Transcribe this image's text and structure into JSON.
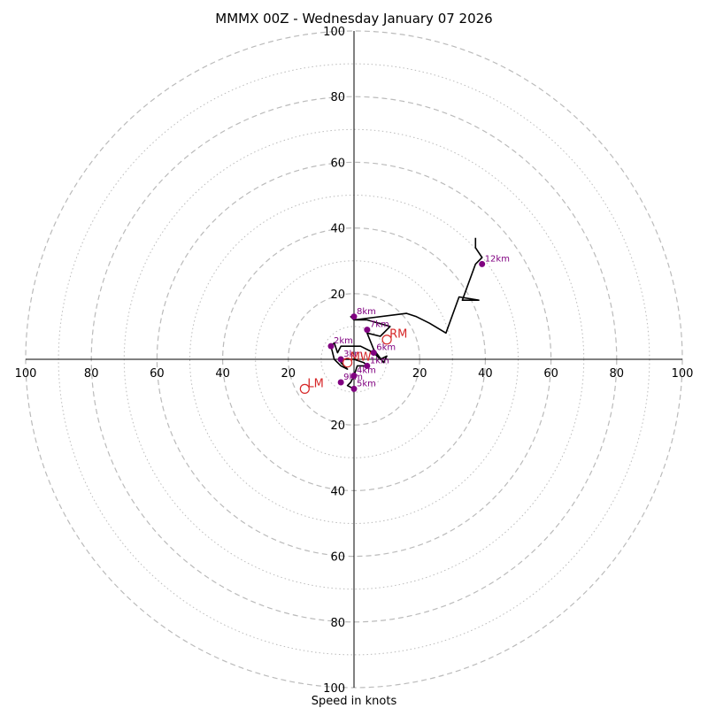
{
  "chart_data": {
    "type": "hodograph",
    "title": "MMMX 00Z - Wednesday January 07 2026",
    "xlabel": "Speed in knots",
    "ylabel": "",
    "xlim": [
      -100,
      100
    ],
    "ylim": [
      -100,
      100
    ],
    "rings_major": [
      20,
      40,
      60,
      80,
      100
    ],
    "rings_minor": [
      10,
      30,
      50,
      70,
      90
    ],
    "tick_labels": [
      "100",
      "80",
      "60",
      "40",
      "20",
      "20",
      "40",
      "60",
      "80",
      "100"
    ],
    "profile": {
      "u": [
        0,
        -2,
        -1,
        0,
        1,
        4,
        3,
        0,
        -3,
        -4,
        -2,
        -4,
        -6,
        -7,
        -6,
        -5,
        -4,
        -1,
        2,
        4,
        6,
        8,
        10,
        9,
        6,
        4,
        8,
        11,
        4,
        0,
        -1,
        0,
        16,
        19,
        23,
        28,
        32,
        38,
        33,
        37,
        39,
        37,
        37
      ],
      "v": [
        -9,
        -8,
        -7,
        -5,
        -2,
        -2,
        -1,
        0,
        0,
        -1,
        -3,
        -2,
        0,
        4,
        5,
        2,
        4,
        4,
        4,
        3,
        2,
        0,
        1,
        -1,
        3,
        8,
        7,
        10,
        12,
        12,
        13,
        12,
        14,
        13,
        11,
        8,
        19,
        18,
        18,
        29,
        31,
        34,
        37
      ]
    },
    "height_markers": [
      {
        "label": "1km",
        "u": 4,
        "v": -2
      },
      {
        "label": "2km",
        "u": -7,
        "v": 4
      },
      {
        "label": "3km",
        "u": -4,
        "v": 0
      },
      {
        "label": "4km",
        "u": 0,
        "v": -5
      },
      {
        "label": "5km",
        "u": 0,
        "v": -9
      },
      {
        "label": "6km",
        "u": 6,
        "v": 2
      },
      {
        "label": "7km",
        "u": 4,
        "v": 9
      },
      {
        "label": "8km",
        "u": 0,
        "v": 13
      },
      {
        "label": "9km",
        "u": -4,
        "v": -7
      },
      {
        "label": "12km",
        "u": 39,
        "v": 29
      }
    ],
    "storm_motions": [
      {
        "label": "RM",
        "u": 10,
        "v": 6
      },
      {
        "label": "LM",
        "u": -15,
        "v": -9
      },
      {
        "label": "MW",
        "u": -2,
        "v": -1
      }
    ],
    "colors": {
      "profile": "#000000",
      "markers": "#800080",
      "motions": "#d62728",
      "grid": "#bbbbbb",
      "axis": "#000000"
    }
  }
}
